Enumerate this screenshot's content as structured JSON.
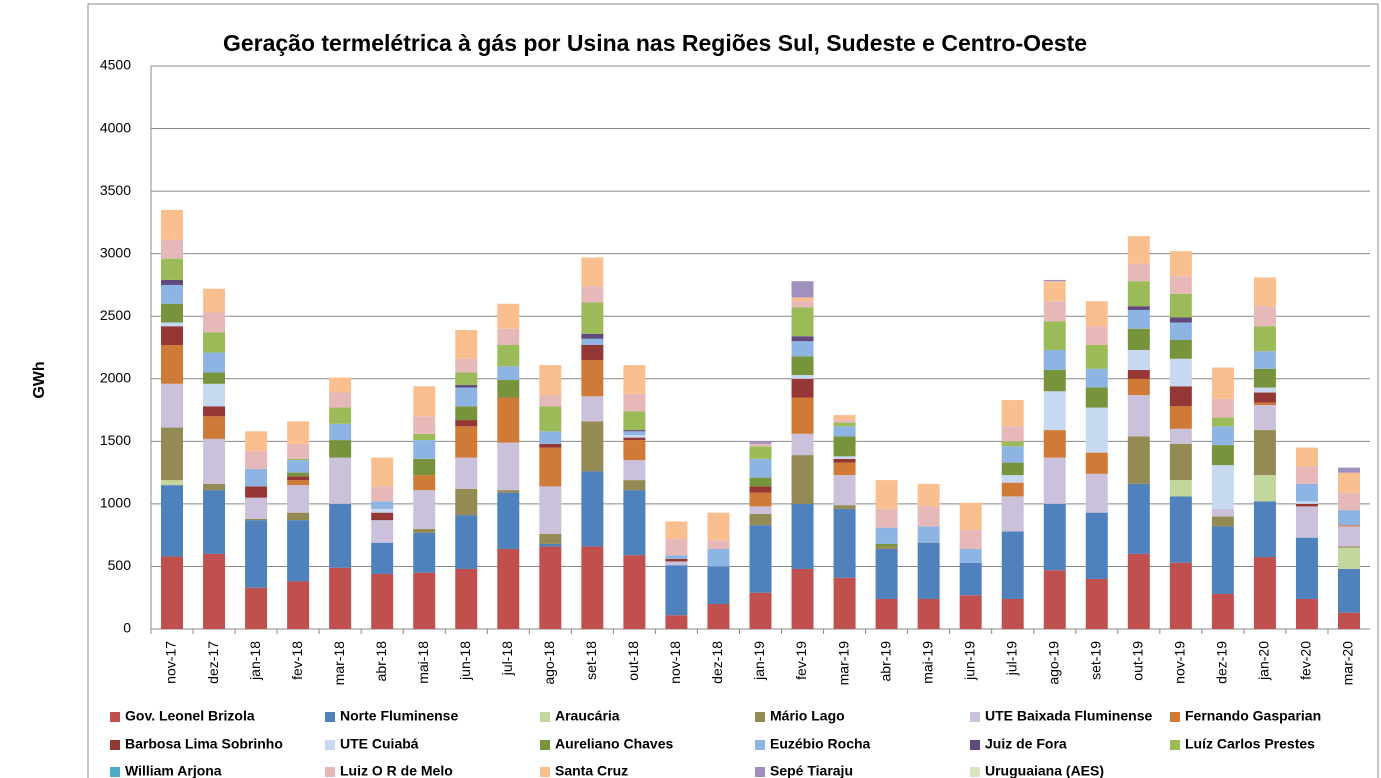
{
  "chart_data": {
    "type": "stacked_bar",
    "title": "Geração termelétrica à gás por Usina nas Regiões Sul, Sudeste e Centro-Oeste",
    "y_label": "GWh",
    "categories": [
      "nov-17",
      "dez-17",
      "jan-18",
      "fev-18",
      "mar-18",
      "abr-18",
      "mai-18",
      "jun-18",
      "jul-18",
      "ago-18",
      "set-18",
      "out-18",
      "nov-18",
      "dez-18",
      "jan-19",
      "fev-19",
      "mar-19",
      "abr-19",
      "mai-19",
      "jun-19",
      "jul-19",
      "ago-19",
      "set-19",
      "out-19",
      "nov-19",
      "dez-19",
      "jan-20",
      "fev-20",
      "mar-20"
    ],
    "ylim": [
      0,
      4500
    ],
    "yticks": [
      0,
      500,
      1000,
      1500,
      2000,
      2500,
      3000,
      3500,
      4000,
      4500
    ],
    "grid": true,
    "series": [
      {
        "name": "Gov. Leonel Brizola",
        "color": "#c0504d",
        "values": [
          580,
          600,
          330,
          380,
          490,
          440,
          450,
          480,
          640,
          660,
          660,
          590,
          110,
          200,
          290,
          480,
          410,
          240,
          240,
          270,
          240,
          470,
          400,
          600,
          530,
          280,
          575,
          240,
          130
        ]
      },
      {
        "name": "Norte Fluminense",
        "color": "#4f81bd",
        "values": [
          570,
          510,
          540,
          490,
          510,
          250,
          320,
          430,
          450,
          20,
          600,
          520,
          400,
          300,
          540,
          520,
          550,
          400,
          450,
          260,
          540,
          530,
          530,
          560,
          530,
          540,
          445,
          490,
          350
        ]
      },
      {
        "name": "Araucária",
        "color": "#c3d69b",
        "values": [
          40,
          0,
          0,
          0,
          0,
          0,
          0,
          0,
          0,
          0,
          0,
          0,
          0,
          0,
          0,
          0,
          0,
          0,
          0,
          0,
          0,
          0,
          0,
          0,
          130,
          0,
          210,
          0,
          170
        ]
      },
      {
        "name": "Mário Lago",
        "color": "#948a54",
        "values": [
          420,
          50,
          10,
          60,
          0,
          0,
          30,
          210,
          20,
          80,
          400,
          80,
          0,
          0,
          90,
          390,
          30,
          20,
          0,
          0,
          0,
          0,
          0,
          380,
          290,
          80,
          360,
          0,
          10
        ]
      },
      {
        "name": "UTE Baixada Fluminense",
        "color": "#ccc1da",
        "values": [
          350,
          360,
          170,
          220,
          370,
          180,
          310,
          250,
          380,
          380,
          200,
          160,
          30,
          0,
          60,
          170,
          240,
          0,
          0,
          0,
          280,
          370,
          310,
          330,
          120,
          60,
          200,
          250,
          160
        ]
      },
      {
        "name": "Fernando Gasparian",
        "color": "#d07a38",
        "values": [
          310,
          180,
          0,
          40,
          0,
          0,
          120,
          250,
          360,
          310,
          290,
          160,
          0,
          0,
          110,
          290,
          100,
          0,
          0,
          0,
          110,
          220,
          170,
          130,
          180,
          0,
          20,
          0,
          10
        ]
      },
      {
        "name": "Barbosa Lima Sobrinho",
        "color": "#953735",
        "values": [
          150,
          80,
          90,
          30,
          0,
          60,
          0,
          50,
          0,
          30,
          120,
          20,
          20,
          0,
          50,
          150,
          30,
          0,
          0,
          0,
          0,
          0,
          0,
          70,
          160,
          0,
          80,
          20,
          0
        ]
      },
      {
        "name": "UTE Cuiabá",
        "color": "#c6d9f1",
        "values": [
          30,
          180,
          0,
          0,
          0,
          30,
          0,
          0,
          0,
          0,
          0,
          20,
          0,
          0,
          0,
          30,
          20,
          0,
          0,
          0,
          60,
          310,
          360,
          160,
          220,
          350,
          40,
          20,
          0
        ]
      },
      {
        "name": "Aureliano Chaves",
        "color": "#77933c",
        "values": [
          150,
          90,
          0,
          30,
          140,
          0,
          130,
          110,
          140,
          0,
          0,
          0,
          0,
          0,
          70,
          150,
          160,
          20,
          0,
          0,
          100,
          170,
          160,
          170,
          150,
          160,
          150,
          0,
          0
        ]
      },
      {
        "name": "Euzébio Rocha",
        "color": "#8db4e2",
        "values": [
          150,
          160,
          140,
          100,
          130,
          60,
          150,
          150,
          110,
          100,
          50,
          30,
          30,
          140,
          150,
          120,
          80,
          130,
          130,
          110,
          130,
          160,
          150,
          150,
          140,
          150,
          140,
          140,
          120
        ]
      },
      {
        "name": "Juiz de Fora",
        "color": "#604a7b",
        "values": [
          40,
          0,
          0,
          0,
          0,
          0,
          0,
          20,
          0,
          0,
          40,
          10,
          0,
          0,
          0,
          40,
          0,
          0,
          0,
          0,
          0,
          0,
          0,
          30,
          40,
          0,
          0,
          0,
          0
        ]
      },
      {
        "name": "Luíz Carlos Prestes",
        "color": "#9bbb59",
        "values": [
          170,
          160,
          0,
          10,
          130,
          0,
          50,
          100,
          170,
          200,
          250,
          150,
          0,
          0,
          100,
          230,
          30,
          0,
          0,
          0,
          40,
          230,
          190,
          200,
          190,
          70,
          200,
          0,
          0
        ]
      },
      {
        "name": "William Arjona",
        "color": "#4bacc6",
        "values": [
          0,
          0,
          0,
          0,
          0,
          0,
          0,
          0,
          0,
          0,
          0,
          0,
          0,
          0,
          0,
          0,
          0,
          0,
          0,
          0,
          0,
          0,
          0,
          0,
          0,
          0,
          0,
          0,
          0
        ]
      },
      {
        "name": "Luiz O R de Melo",
        "color": "#e6b9b8",
        "values": [
          150,
          160,
          140,
          120,
          120,
          120,
          140,
          110,
          130,
          90,
          130,
          140,
          130,
          70,
          20,
          50,
          20,
          150,
          160,
          150,
          120,
          160,
          150,
          140,
          140,
          150,
          160,
          140,
          140
        ]
      },
      {
        "name": "Santa Cruz",
        "color": "#fabf8f",
        "values": [
          240,
          190,
          160,
          180,
          120,
          230,
          240,
          230,
          200,
          240,
          230,
          230,
          140,
          220,
          0,
          30,
          40,
          230,
          180,
          220,
          210,
          160,
          200,
          220,
          200,
          250,
          230,
          150,
          160
        ]
      },
      {
        "name": "Sepé Tiaraju",
        "color": "#a18fbf",
        "values": [
          0,
          0,
          0,
          0,
          0,
          0,
          0,
          0,
          0,
          0,
          0,
          0,
          0,
          0,
          20,
          130,
          0,
          0,
          0,
          0,
          0,
          10,
          0,
          0,
          0,
          0,
          0,
          0,
          40
        ]
      },
      {
        "name": "Uruguaiana (AES)",
        "color": "#d7e4bd",
        "values": [
          0,
          0,
          0,
          0,
          0,
          0,
          0,
          0,
          0,
          0,
          0,
          0,
          0,
          0,
          0,
          0,
          0,
          0,
          0,
          0,
          0,
          0,
          0,
          0,
          0,
          0,
          0,
          0,
          0
        ]
      }
    ]
  }
}
